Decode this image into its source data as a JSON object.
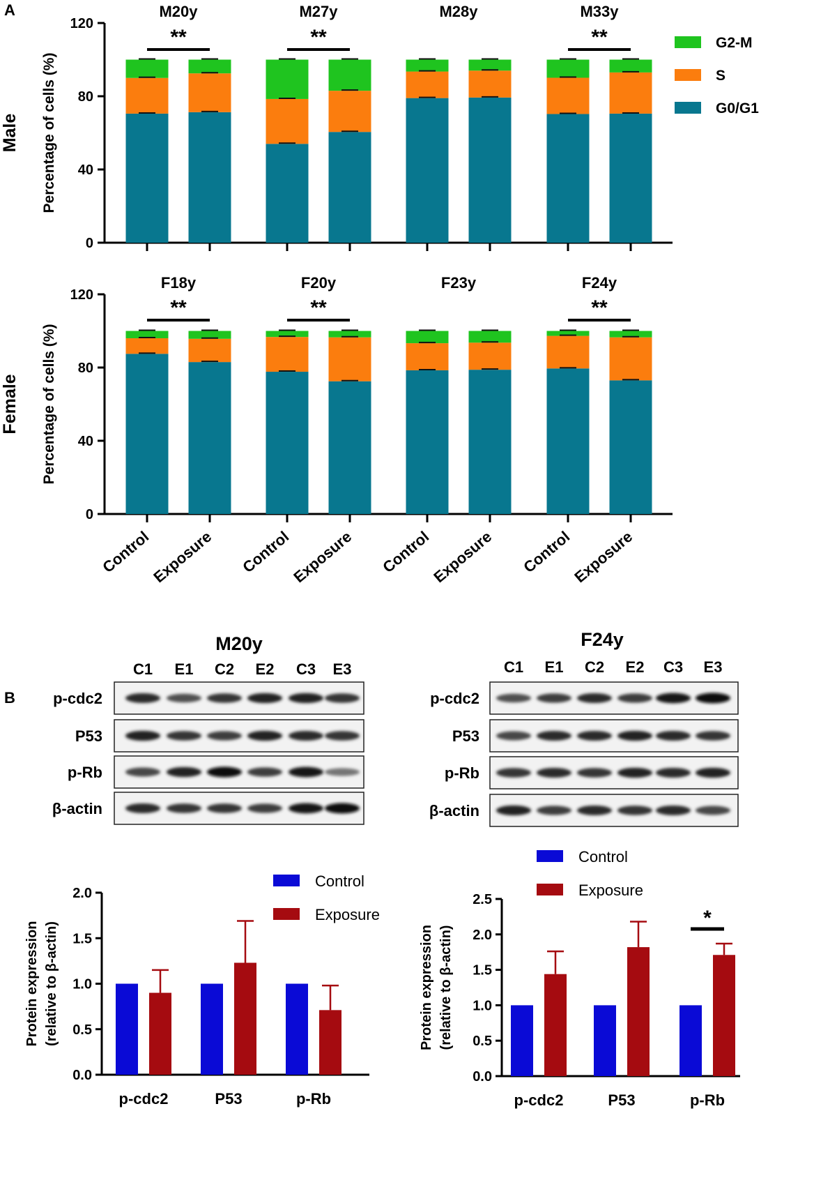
{
  "panel_a_label": "A",
  "panel_b_label": "B",
  "legend_a": [
    "G2-M",
    "S",
    "G0/G1"
  ],
  "colors": {
    "g0g1": "#08778f",
    "s": "#fb7d0e",
    "g2m": "#1fc41f",
    "control": "#0a0ad6",
    "exposure": "#a50b10",
    "axis": "#000000"
  },
  "bar_categories": [
    "Control",
    "Exposure"
  ],
  "sig_double": "**",
  "sig_single": "*",
  "chart_data": [
    {
      "type": "bar",
      "stacked": true,
      "row_label": "Male",
      "ylabel": "Percentage of cells (%)",
      "ylim": [
        0,
        120
      ],
      "yticks": [
        0,
        40,
        80,
        120
      ],
      "groups": [
        {
          "name": "M20y",
          "sig": "**",
          "bars": [
            {
              "label": "Control",
              "g0g1": 70.5,
              "s": 19.5,
              "g2m": 10.0
            },
            {
              "label": "Exposure",
              "g0g1": 71.3,
              "s": 21.2,
              "g2m": 7.5
            }
          ]
        },
        {
          "name": "M27y",
          "sig": "**",
          "bars": [
            {
              "label": "Control",
              "g0g1": 54.0,
              "s": 24.5,
              "g2m": 21.5
            },
            {
              "label": "Exposure",
              "g0g1": 60.5,
              "s": 22.5,
              "g2m": 17.0
            }
          ]
        },
        {
          "name": "M28y",
          "sig": "",
          "bars": [
            {
              "label": "Control",
              "g0g1": 79.0,
              "s": 14.5,
              "g2m": 6.5
            },
            {
              "label": "Exposure",
              "g0g1": 79.3,
              "s": 14.7,
              "g2m": 6.0
            }
          ]
        },
        {
          "name": "M33y",
          "sig": "**",
          "bars": [
            {
              "label": "Control",
              "g0g1": 70.3,
              "s": 19.8,
              "g2m": 9.9
            },
            {
              "label": "Exposure",
              "g0g1": 70.5,
              "s": 22.5,
              "g2m": 7.0
            }
          ]
        }
      ]
    },
    {
      "type": "bar",
      "stacked": true,
      "row_label": "Female",
      "ylabel": "Percentage of cells (%)",
      "ylim": [
        0,
        120
      ],
      "yticks": [
        0,
        40,
        80,
        120
      ],
      "groups": [
        {
          "name": "F18y",
          "sig": "**",
          "bars": [
            {
              "label": "Control",
              "g0g1": 87.5,
              "s": 8.5,
              "g2m": 4.0
            },
            {
              "label": "Exposure",
              "g0g1": 83.0,
              "s": 12.7,
              "g2m": 4.3
            }
          ]
        },
        {
          "name": "F20y",
          "sig": "**",
          "bars": [
            {
              "label": "Control",
              "g0g1": 77.7,
              "s": 19.0,
              "g2m": 3.3
            },
            {
              "label": "Exposure",
              "g0g1": 72.5,
              "s": 24.0,
              "g2m": 3.5
            }
          ]
        },
        {
          "name": "F23y",
          "sig": "",
          "bars": [
            {
              "label": "Control",
              "g0g1": 78.5,
              "s": 14.8,
              "g2m": 6.7
            },
            {
              "label": "Exposure",
              "g0g1": 78.8,
              "s": 14.8,
              "g2m": 6.4
            }
          ]
        },
        {
          "name": "F24y",
          "sig": "**",
          "bars": [
            {
              "label": "Control",
              "g0g1": 79.5,
              "s": 17.8,
              "g2m": 2.7
            },
            {
              "label": "Exposure",
              "g0g1": 73.0,
              "s": 23.5,
              "g2m": 3.5
            }
          ]
        }
      ]
    },
    {
      "type": "bar",
      "title": "M20y",
      "ylabel_lines": [
        "Protein expression",
        "(relative to  β-actin)"
      ],
      "ylim": [
        0,
        2.0
      ],
      "yticks": [
        "0.0",
        "0.5",
        "1.0",
        "1.5",
        "2.0"
      ],
      "categories": [
        "p-cdc2",
        "P53",
        "p-Rb"
      ],
      "series": [
        {
          "name": "Control",
          "values": [
            1.0,
            1.0,
            1.0
          ],
          "err": [
            0,
            0,
            0
          ]
        },
        {
          "name": "Exposure",
          "values": [
            0.9,
            1.23,
            0.71
          ],
          "err": [
            0.25,
            0.46,
            0.27
          ]
        }
      ],
      "sig": []
    },
    {
      "type": "bar",
      "title": "F24y",
      "ylabel_lines": [
        "Protein expression",
        "(relative to  β-actin)"
      ],
      "ylim": [
        0,
        2.5
      ],
      "yticks": [
        "0.0",
        "0.5",
        "1.0",
        "1.5",
        "2.0",
        "2.5"
      ],
      "categories": [
        "p-cdc2",
        "P53",
        "p-Rb"
      ],
      "series": [
        {
          "name": "Control",
          "values": [
            1.0,
            1.0,
            1.0
          ],
          "err": [
            0,
            0,
            0
          ]
        },
        {
          "name": "Exposure",
          "values": [
            1.44,
            1.82,
            1.71
          ],
          "err": [
            0.32,
            0.36,
            0.16
          ]
        }
      ],
      "sig": [
        {
          "category": "p-Rb",
          "mark": "*"
        }
      ]
    }
  ],
  "blots": [
    {
      "title": "M20y",
      "lanes": [
        "C1",
        "E1",
        "C2",
        "E2",
        "C3",
        "E3"
      ],
      "rows": [
        {
          "label": "p-cdc2",
          "intensity": [
            0.85,
            0.65,
            0.8,
            0.9,
            0.9,
            0.8
          ]
        },
        {
          "label": "P53",
          "intensity": [
            0.9,
            0.8,
            0.75,
            0.9,
            0.85,
            0.8
          ]
        },
        {
          "label": "p-Rb",
          "intensity": [
            0.7,
            0.9,
            1.0,
            0.75,
            0.95,
            0.45
          ]
        },
        {
          "label": "β-actin",
          "intensity": [
            0.85,
            0.8,
            0.8,
            0.75,
            0.95,
            1.0
          ]
        }
      ]
    },
    {
      "title": "F24y",
      "lanes": [
        "C1",
        "E1",
        "C2",
        "E2",
        "C3",
        "E3"
      ],
      "rows": [
        {
          "label": "p-cdc2",
          "intensity": [
            0.65,
            0.75,
            0.85,
            0.75,
            0.95,
            1.0
          ]
        },
        {
          "label": "P53",
          "intensity": [
            0.7,
            0.85,
            0.85,
            0.9,
            0.85,
            0.8
          ]
        },
        {
          "label": "p-Rb",
          "intensity": [
            0.8,
            0.85,
            0.8,
            0.9,
            0.85,
            0.9
          ]
        },
        {
          "label": "β-actin",
          "intensity": [
            0.9,
            0.75,
            0.85,
            0.8,
            0.85,
            0.7
          ]
        }
      ]
    }
  ]
}
